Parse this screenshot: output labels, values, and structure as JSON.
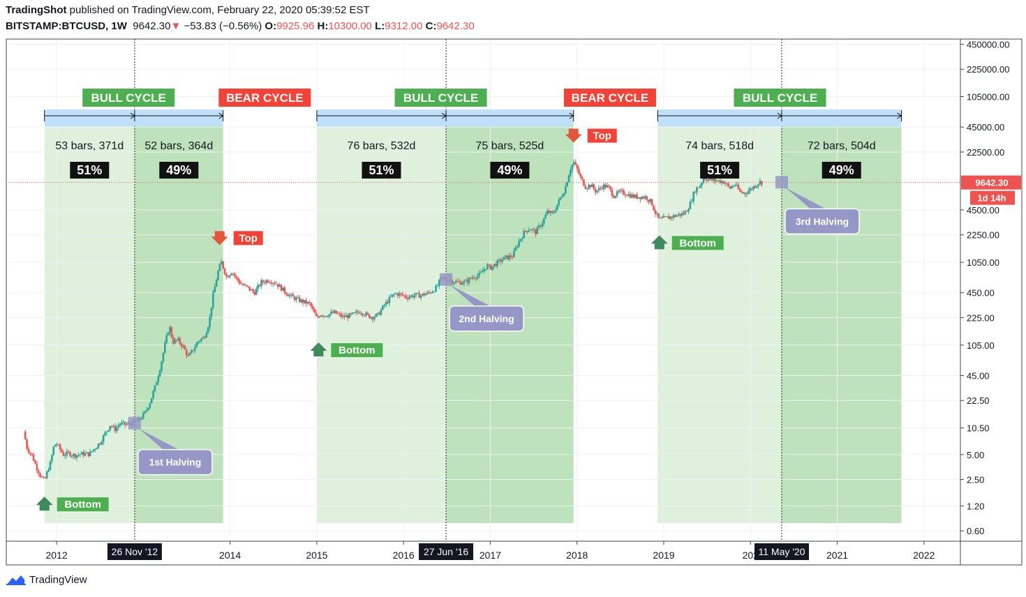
{
  "header": {
    "author": "TradingShot",
    "published_text": "published on TradingView.com, February 22, 2020 05:39:52 EST",
    "symbol": "BITSTAMP:BTCUSD, 1W",
    "price": "9642.30",
    "change": "−53.83 (−0.56%)",
    "open_label": "O:",
    "open": "9925.96",
    "high_label": "H:",
    "high": "10300.00",
    "low_label": "L:",
    "low": "9312.00",
    "close_label": "C:",
    "close": "9642.30"
  },
  "footer": {
    "brand": "TradingView"
  },
  "colors": {
    "light_zone": "#dbefd9",
    "dark_zone": "#b7dfb4",
    "range_bar": "#bfe0fb",
    "bull_label": "#4caf50",
    "bear_label": "#f44336",
    "up_candle": "#26a69a",
    "down_candle": "#ef5350",
    "halving": "#9598c6",
    "arrow_down": "#e5553b",
    "arrow_up": "#3e8a5a"
  },
  "chart_data": {
    "type": "candlestick",
    "y_scale": "log",
    "y_ticks": [
      "450000.00",
      "225000.00",
      "105000.00",
      "45000.00",
      "22500.00",
      "4500.00",
      "2250.00",
      "1050.00",
      "450.00",
      "225.00",
      "105.00",
      "45.00",
      "22.50",
      "10.50",
      "5.00",
      "2.50",
      "1.20",
      "0.60"
    ],
    "y_tick_values": [
      450000,
      225000,
      105000,
      45000,
      22500,
      4500,
      2250,
      1050,
      450,
      225,
      105,
      45,
      22.5,
      10.5,
      5,
      2.5,
      1.2,
      0.6
    ],
    "x_ticks": [
      "2012",
      "2014",
      "2015",
      "2016",
      "2017",
      "2018",
      "2019",
      "202",
      "2021",
      "2022"
    ],
    "x_tick_values": [
      2012.0,
      2014.0,
      2015.0,
      2016.0,
      2017.0,
      2018.0,
      2019.0,
      2020.0,
      2021.0,
      2022.0
    ],
    "x_range": [
      2011.42,
      2022.42
    ],
    "y_range": [
      0.45,
      520000
    ],
    "last_price_label": "9642.30",
    "countdown_label": "1d 14h",
    "current_price": 9642.3,
    "date_markers": [
      {
        "label": "26 Nov '12",
        "t": 2012.9
      },
      {
        "label": "27 Jun '16",
        "t": 2016.49
      },
      {
        "label": "11 May '20",
        "t": 2020.36
      }
    ],
    "zones": [
      {
        "kind": "light",
        "t0": 2011.86,
        "t1": 2012.9
      },
      {
        "kind": "dark",
        "t0": 2012.9,
        "t1": 2013.92
      },
      {
        "kind": "light",
        "t0": 2015.0,
        "t1": 2016.49
      },
      {
        "kind": "dark",
        "t0": 2016.49,
        "t1": 2017.96
      },
      {
        "kind": "light",
        "t0": 2018.93,
        "t1": 2020.36
      },
      {
        "kind": "dark",
        "t0": 2020.36,
        "t1": 2021.74
      }
    ],
    "measure_bars": [
      {
        "t0": 2011.86,
        "t1": 2012.9,
        "text": "53 bars, 371d",
        "pct": "51%"
      },
      {
        "t0": 2012.9,
        "t1": 2013.92,
        "text": "52 bars, 364d",
        "pct": "49%"
      },
      {
        "t0": 2015.0,
        "t1": 2016.49,
        "text": "76 bars, 532d",
        "pct": "51%"
      },
      {
        "t0": 2016.49,
        "t1": 2017.96,
        "text": "75 bars, 525d",
        "pct": "49%"
      },
      {
        "t0": 2018.93,
        "t1": 2020.36,
        "text": "74 bars, 518d",
        "pct": "51%"
      },
      {
        "t0": 2020.36,
        "t1": 2021.74,
        "text": "72 bars, 504d",
        "pct": "49%"
      }
    ],
    "cycle_labels": [
      {
        "text": "BULL CYCLE",
        "kind": "bull",
        "t": 2012.83
      },
      {
        "text": "BEAR CYCLE",
        "kind": "bear",
        "t": 2014.4
      },
      {
        "text": "BULL CYCLE",
        "kind": "bull",
        "t": 2016.43
      },
      {
        "text": "BEAR CYCLE",
        "kind": "bear",
        "t": 2018.38
      },
      {
        "text": "BULL CYCLE",
        "kind": "bull",
        "t": 2020.34
      }
    ],
    "top_labels": [
      {
        "text": "Top",
        "t": 2013.88,
        "price": 1150
      },
      {
        "text": "Top",
        "t": 2017.96,
        "price": 19800
      }
    ],
    "bottom_labels": [
      {
        "text": "Bottom",
        "t": 2011.86,
        "price": 2.2
      },
      {
        "text": "Bottom",
        "t": 2015.02,
        "price": 160
      },
      {
        "text": "Bottom",
        "t": 2018.95,
        "price": 3150
      }
    ],
    "halvings": [
      {
        "text": "1st Halving",
        "t": 2012.9,
        "price": 12
      },
      {
        "text": "2nd Halving",
        "t": 2016.49,
        "price": 650
      },
      {
        "text": "3rd Halving",
        "t": 2020.36,
        "price": 9700
      }
    ],
    "price_path": [
      [
        2011.62,
        9.5
      ],
      [
        2011.66,
        6
      ],
      [
        2011.72,
        4.8
      ],
      [
        2011.77,
        3.5
      ],
      [
        2011.83,
        2.6
      ],
      [
        2011.86,
        2.4
      ],
      [
        2011.9,
        3.3
      ],
      [
        2011.93,
        4
      ],
      [
        2011.97,
        6.5
      ],
      [
        2012.0,
        6.8
      ],
      [
        2012.04,
        5.8
      ],
      [
        2012.08,
        5
      ],
      [
        2012.14,
        5.2
      ],
      [
        2012.2,
        4.9
      ],
      [
        2012.3,
        5.1
      ],
      [
        2012.38,
        5.1
      ],
      [
        2012.44,
        6
      ],
      [
        2012.5,
        7
      ],
      [
        2012.56,
        9
      ],
      [
        2012.62,
        11.5
      ],
      [
        2012.67,
        10
      ],
      [
        2012.73,
        11.8
      ],
      [
        2012.8,
        11.5
      ],
      [
        2012.86,
        12
      ],
      [
        2012.9,
        12.2
      ],
      [
        2012.96,
        13.4
      ],
      [
        2013.02,
        16
      ],
      [
        2013.08,
        22
      ],
      [
        2013.14,
        34
      ],
      [
        2013.2,
        60
      ],
      [
        2013.26,
        120
      ],
      [
        2013.3,
        180
      ],
      [
        2013.34,
        115
      ],
      [
        2013.4,
        120
      ],
      [
        2013.46,
        100
      ],
      [
        2013.52,
        75
      ],
      [
        2013.58,
        95
      ],
      [
        2013.64,
        120
      ],
      [
        2013.7,
        130
      ],
      [
        2013.76,
        200
      ],
      [
        2013.8,
        400
      ],
      [
        2013.86,
        800
      ],
      [
        2013.9,
        1050
      ],
      [
        2013.96,
        700
      ],
      [
        2014.02,
        820
      ],
      [
        2014.08,
        650
      ],
      [
        2014.14,
        560
      ],
      [
        2014.2,
        520
      ],
      [
        2014.28,
        450
      ],
      [
        2014.36,
        600
      ],
      [
        2014.44,
        640
      ],
      [
        2014.52,
        600
      ],
      [
        2014.6,
        500
      ],
      [
        2014.68,
        420
      ],
      [
        2014.76,
        380
      ],
      [
        2014.84,
        350
      ],
      [
        2014.92,
        330
      ],
      [
        2015.0,
        220
      ],
      [
        2015.04,
        250
      ],
      [
        2015.1,
        240
      ],
      [
        2015.2,
        260
      ],
      [
        2015.3,
        230
      ],
      [
        2015.4,
        240
      ],
      [
        2015.5,
        270
      ],
      [
        2015.58,
        240
      ],
      [
        2015.64,
        230
      ],
      [
        2015.7,
        240
      ],
      [
        2015.78,
        320
      ],
      [
        2015.84,
        380
      ],
      [
        2015.9,
        440
      ],
      [
        2015.96,
        430
      ],
      [
        2016.04,
        400
      ],
      [
        2016.12,
        420
      ],
      [
        2016.2,
        420
      ],
      [
        2016.3,
        450
      ],
      [
        2016.38,
        520
      ],
      [
        2016.44,
        680
      ],
      [
        2016.49,
        650
      ],
      [
        2016.56,
        620
      ],
      [
        2016.64,
        600
      ],
      [
        2016.72,
        610
      ],
      [
        2016.8,
        700
      ],
      [
        2016.88,
        740
      ],
      [
        2016.96,
        960
      ],
      [
        2017.0,
        900
      ],
      [
        2017.06,
        1000
      ],
      [
        2017.12,
        1100
      ],
      [
        2017.18,
        1200
      ],
      [
        2017.26,
        1250
      ],
      [
        2017.32,
        1800
      ],
      [
        2017.4,
        2500
      ],
      [
        2017.46,
        2700
      ],
      [
        2017.52,
        2400
      ],
      [
        2017.6,
        3200
      ],
      [
        2017.66,
        4300
      ],
      [
        2017.72,
        4000
      ],
      [
        2017.8,
        6000
      ],
      [
        2017.86,
        8000
      ],
      [
        2017.92,
        14000
      ],
      [
        2017.96,
        17000
      ],
      [
        2018.0,
        14000
      ],
      [
        2018.04,
        11000
      ],
      [
        2018.1,
        8500
      ],
      [
        2018.16,
        9000
      ],
      [
        2018.22,
        7500
      ],
      [
        2018.3,
        8800
      ],
      [
        2018.36,
        8500
      ],
      [
        2018.42,
        6700
      ],
      [
        2018.5,
        7400
      ],
      [
        2018.58,
        7000
      ],
      [
        2018.66,
        6500
      ],
      [
        2018.74,
        6500
      ],
      [
        2018.8,
        6400
      ],
      [
        2018.86,
        5500
      ],
      [
        2018.9,
        4200
      ],
      [
        2018.95,
        3400
      ],
      [
        2019.02,
        3600
      ],
      [
        2019.08,
        3700
      ],
      [
        2019.16,
        3900
      ],
      [
        2019.24,
        4100
      ],
      [
        2019.3,
        5200
      ],
      [
        2019.36,
        7800
      ],
      [
        2019.42,
        9000
      ],
      [
        2019.46,
        11000
      ],
      [
        2019.52,
        10500
      ],
      [
        2019.58,
        10200
      ],
      [
        2019.64,
        10100
      ],
      [
        2019.7,
        9800
      ],
      [
        2019.76,
        8200
      ],
      [
        2019.82,
        9200
      ],
      [
        2019.88,
        7400
      ],
      [
        2019.94,
        7200
      ],
      [
        2020.0,
        8000
      ],
      [
        2020.06,
        9000
      ],
      [
        2020.1,
        9800
      ],
      [
        2020.13,
        9642.3
      ]
    ]
  }
}
